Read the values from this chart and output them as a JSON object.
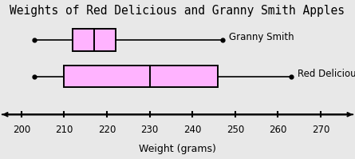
{
  "title": "Weights of Red Delicious and Granny Smith Apples",
  "xlabel": "Weight (grams)",
  "granny_smith": {
    "min": 203,
    "q1": 212,
    "median": 217,
    "q3": 222,
    "max": 247,
    "label": "Granny Smith"
  },
  "red_delicious": {
    "min": 203,
    "q1": 210,
    "median": 230,
    "q3": 246,
    "max": 263,
    "label": "Red Delicious"
  },
  "box_color": "#ffb3ff",
  "box_edgecolor": "#000000",
  "line_color": "#000000",
  "xlim": [
    195,
    278
  ],
  "xticks": [
    200,
    210,
    220,
    230,
    240,
    250,
    260,
    270
  ],
  "bg_color": "#e8e8e8",
  "title_fontsize": 10.5,
  "label_fontsize": 8.5,
  "tick_fontsize": 8.5
}
